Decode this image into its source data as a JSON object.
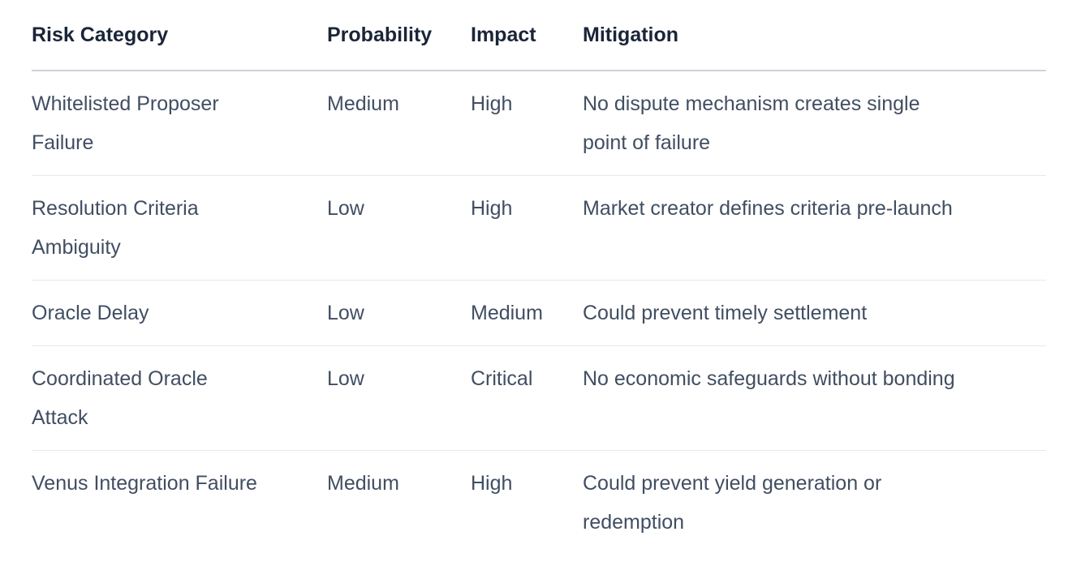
{
  "theme": {
    "page-bg": "#ffffff",
    "header-text": "#1b2538",
    "body-text": "#414e62",
    "header-border": "#cdd3da",
    "row-border": "#e7e9ec"
  },
  "table": {
    "columns": [
      "Risk Category",
      "Probability",
      "Impact",
      "Mitigation"
    ],
    "rows": [
      {
        "risk": "Whitelisted Proposer Failure",
        "probability": "Medium",
        "impact": "High",
        "mitigation": "No dispute mechanism creates single point of failure"
      },
      {
        "risk": "Resolution Criteria Ambiguity",
        "probability": "Low",
        "impact": "High",
        "mitigation": "Market creator defines criteria pre-launch"
      },
      {
        "risk": "Oracle Delay",
        "probability": "Low",
        "impact": "Medium",
        "mitigation": "Could prevent timely settlement"
      },
      {
        "risk": "Coordinated Oracle Attack",
        "probability": "Low",
        "impact": "Critical",
        "mitigation": "No economic safeguards without bonding"
      },
      {
        "risk": "Venus Integration Failure",
        "probability": "Medium",
        "impact": "High",
        "mitigation": "Could prevent yield generation or redemption"
      }
    ]
  }
}
